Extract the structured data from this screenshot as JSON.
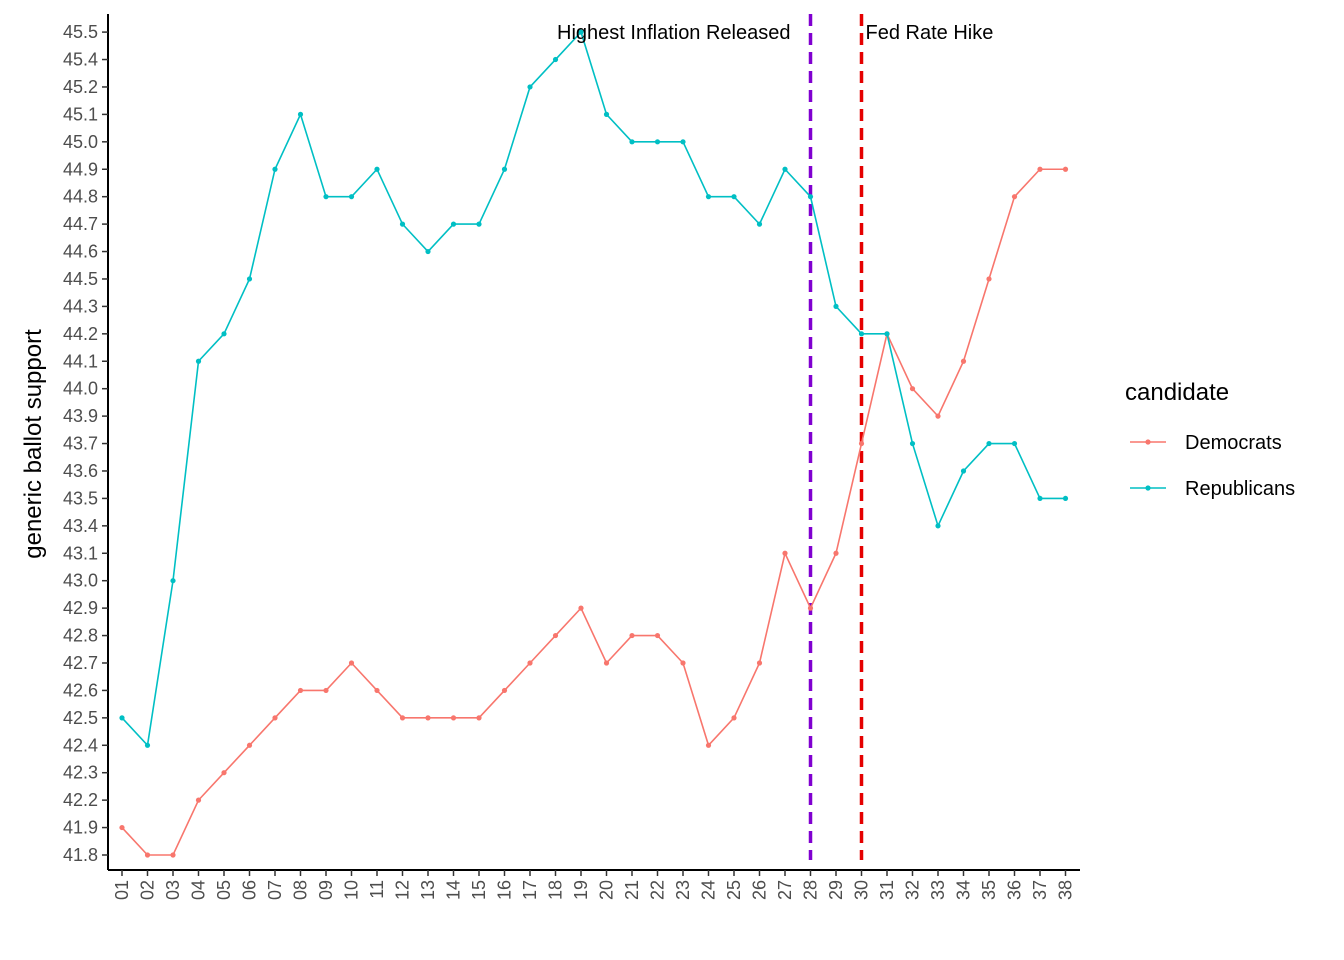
{
  "chart_data": {
    "type": "line",
    "title": "",
    "xlabel": "",
    "ylabel": "generic ballot support",
    "categories": [
      "01",
      "02",
      "03",
      "04",
      "05",
      "06",
      "07",
      "08",
      "09",
      "10",
      "11",
      "12",
      "13",
      "14",
      "15",
      "16",
      "17",
      "18",
      "19",
      "20",
      "21",
      "22",
      "23",
      "24",
      "25",
      "26",
      "27",
      "28",
      "29",
      "30",
      "31",
      "32",
      "33",
      "34",
      "35",
      "36",
      "37",
      "38"
    ],
    "y_ticks": [
      "41.8",
      "41.9",
      "42.2",
      "42.3",
      "42.4",
      "42.5",
      "42.6",
      "42.7",
      "42.8",
      "42.9",
      "43.0",
      "43.1",
      "43.4",
      "43.5",
      "43.6",
      "43.7",
      "43.9",
      "44.0",
      "44.1",
      "44.2",
      "44.3",
      "44.5",
      "44.6",
      "44.7",
      "44.8",
      "44.9",
      "45.0",
      "45.1",
      "45.2",
      "45.4",
      "45.5"
    ],
    "y_axis_scale": "discrete (each distinct value evenly spaced)",
    "series": [
      {
        "name": "Democrats",
        "color": "#F8766D",
        "values": [
          41.9,
          41.8,
          41.8,
          42.2,
          42.3,
          42.4,
          42.5,
          42.6,
          42.6,
          42.7,
          42.6,
          42.5,
          42.5,
          42.5,
          42.5,
          42.6,
          42.7,
          42.8,
          42.9,
          42.7,
          42.8,
          42.8,
          42.7,
          42.4,
          42.5,
          42.7,
          43.1,
          42.9,
          43.1,
          43.7,
          44.2,
          44.0,
          43.9,
          44.1,
          44.5,
          44.8,
          44.9,
          44.9
        ]
      },
      {
        "name": "Republicans",
        "color": "#00BFC4",
        "values": [
          42.5,
          42.4,
          43.0,
          44.1,
          44.2,
          44.5,
          44.9,
          45.1,
          44.8,
          44.8,
          44.9,
          44.7,
          44.6,
          44.7,
          44.7,
          44.9,
          45.2,
          45.4,
          45.5,
          45.1,
          45.0,
          45.0,
          45.0,
          44.8,
          44.8,
          44.7,
          44.9,
          44.8,
          44.3,
          44.2,
          44.2,
          43.7,
          43.4,
          43.6,
          43.7,
          43.7,
          43.5,
          43.5
        ]
      }
    ],
    "annotations": [
      {
        "label": "Highest Inflation Released",
        "x": "28",
        "color": "#8000D0",
        "line_style": "dashed",
        "label_side": "left"
      },
      {
        "label": "Fed Rate Hike",
        "x": "30",
        "color": "#E50000",
        "line_style": "dashed",
        "label_side": "right"
      }
    ],
    "legend": {
      "title": "candidate",
      "placement": "right"
    },
    "grid": false
  }
}
